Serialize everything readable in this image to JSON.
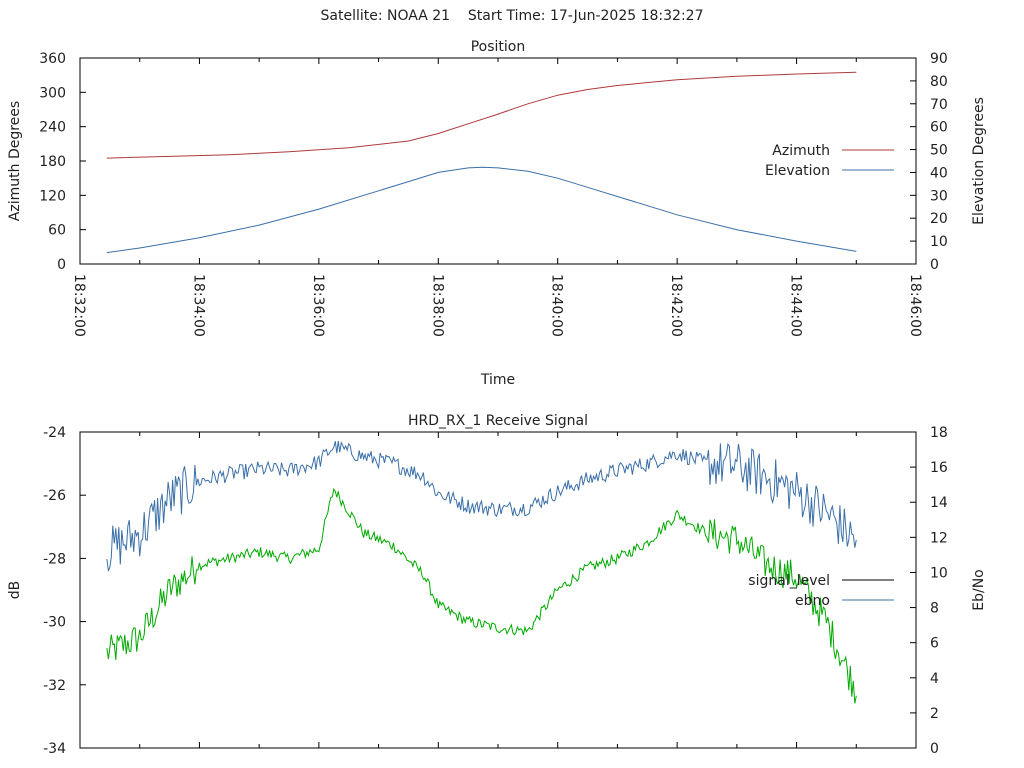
{
  "header": {
    "satellite_label": "Satellite: NOAA 21",
    "start_time_label": "Start Time: 17-Jun-2025 18:32:27"
  },
  "chart_data": [
    {
      "type": "line",
      "title": "Position",
      "xlabel": "Time",
      "ylabel": "Azimuth Degrees",
      "y2label": "Elevation Degrees",
      "xlim": [
        "18:32:00",
        "18:46:00"
      ],
      "xticks": [
        "18:32:00",
        "18:34:00",
        "18:36:00",
        "18:38:00",
        "18:40:00",
        "18:42:00",
        "18:44:00",
        "18:46:00"
      ],
      "ylim": [
        0,
        360
      ],
      "yticks": [
        0,
        60,
        120,
        180,
        240,
        300,
        360
      ],
      "y2lim": [
        0,
        90
      ],
      "y2ticks": [
        0,
        10,
        20,
        30,
        40,
        50,
        60,
        70,
        80,
        90
      ],
      "legend_position": "right",
      "series": [
        {
          "name": "Azimuth",
          "axis": "left",
          "color": "#b03a3a",
          "x": [
            "18:32:27",
            "18:33:30",
            "18:34:30",
            "18:35:30",
            "18:36:30",
            "18:37:30",
            "18:38:00",
            "18:38:30",
            "18:39:00",
            "18:39:30",
            "18:40:00",
            "18:40:30",
            "18:41:00",
            "18:42:00",
            "18:43:00",
            "18:44:00",
            "18:45:00"
          ],
          "values": [
            185,
            188,
            191,
            196,
            203,
            215,
            228,
            245,
            262,
            280,
            295,
            305,
            312,
            322,
            328,
            332,
            335
          ]
        },
        {
          "name": "Elevation",
          "axis": "right",
          "color": "#3b6fa8",
          "x": [
            "18:32:27",
            "18:33:00",
            "18:34:00",
            "18:35:00",
            "18:36:00",
            "18:37:00",
            "18:37:30",
            "18:38:00",
            "18:38:30",
            "18:38:45",
            "18:39:00",
            "18:39:30",
            "18:40:00",
            "18:40:30",
            "18:41:00",
            "18:42:00",
            "18:43:00",
            "18:44:00",
            "18:45:00"
          ],
          "values": [
            5,
            7,
            11.5,
            17,
            24,
            32,
            36,
            40,
            42,
            42.3,
            42,
            40.5,
            37.5,
            33.5,
            29.5,
            21.5,
            15,
            10,
            5.5
          ]
        }
      ]
    },
    {
      "type": "line",
      "title": "HRD_RX_1 Receive Signal",
      "xlabel": "",
      "ylabel": "dB",
      "y2label": "Eb/No",
      "xlim": [
        "18:32:00",
        "18:46:00"
      ],
      "ylim": [
        -34,
        -24
      ],
      "yticks": [
        -34,
        -32,
        -30,
        -28,
        -26,
        -24
      ],
      "y2lim": [
        0,
        18
      ],
      "y2ticks": [
        0,
        2,
        4,
        6,
        8,
        10,
        12,
        14,
        16,
        18
      ],
      "legend_position": "right",
      "series": [
        {
          "name": "signal_level",
          "axis": "left",
          "color": "#00aa00",
          "x": [
            "18:32:27",
            "18:33:00",
            "18:33:30",
            "18:34:00",
            "18:34:30",
            "18:35:00",
            "18:35:30",
            "18:36:00",
            "18:36:15",
            "18:36:45",
            "18:37:15",
            "18:37:45",
            "18:38:00",
            "18:38:30",
            "18:39:00",
            "18:39:30",
            "18:40:00",
            "18:40:30",
            "18:41:00",
            "18:41:30",
            "18:42:00",
            "18:42:30",
            "18:43:00",
            "18:43:30",
            "18:44:00",
            "18:44:30",
            "18:45:00"
          ],
          "values": [
            -31,
            -30.5,
            -29,
            -28.2,
            -28.0,
            -27.8,
            -28.0,
            -27.7,
            -25.8,
            -27.2,
            -27.6,
            -28.5,
            -29.5,
            -30.0,
            -30.2,
            -30.3,
            -29.0,
            -28.3,
            -28.0,
            -27.5,
            -26.6,
            -27.2,
            -27.4,
            -28.2,
            -28.6,
            -30.0,
            -32.2
          ]
        },
        {
          "name": "ebno",
          "axis": "right",
          "color": "#3b6fa8",
          "x": [
            "18:32:27",
            "18:33:00",
            "18:33:30",
            "18:34:00",
            "18:34:30",
            "18:35:00",
            "18:35:30",
            "18:36:00",
            "18:36:15",
            "18:36:45",
            "18:37:15",
            "18:37:45",
            "18:38:00",
            "18:38:30",
            "18:39:00",
            "18:39:30",
            "18:40:00",
            "18:40:30",
            "18:41:00",
            "18:41:30",
            "18:42:00",
            "18:42:30",
            "18:43:00",
            "18:43:30",
            "18:44:00",
            "18:44:30",
            "18:45:00"
          ],
          "values": [
            11.2,
            12.2,
            14.2,
            15.2,
            15.6,
            15.9,
            15.8,
            16.3,
            17.2,
            16.6,
            16.2,
            15.5,
            14.5,
            13.8,
            13.6,
            13.7,
            14.6,
            15.3,
            15.8,
            16.2,
            16.8,
            16.2,
            16.1,
            15.4,
            14.6,
            13.4,
            11.8
          ]
        }
      ]
    }
  ]
}
